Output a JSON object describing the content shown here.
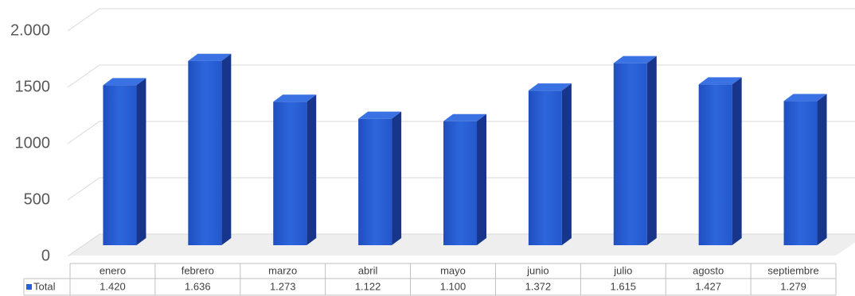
{
  "chart_data": {
    "type": "bar3d",
    "categories": [
      "enero",
      "febrero",
      "marzo",
      "abril",
      "mayo",
      "junio",
      "julio",
      "agosto",
      "septiembre"
    ],
    "series": [
      {
        "name": "Total",
        "color": "#2860d8",
        "values": [
          1420,
          1636,
          1273,
          1122,
          1100,
          1372,
          1615,
          1427,
          1279
        ],
        "value_labels": [
          "1.420",
          "1.636",
          "1.273",
          "1.122",
          "1.100",
          "1.372",
          "1.615",
          "1.427",
          "1.279"
        ]
      }
    ],
    "ylim": [
      0,
      2000
    ],
    "yticks": [
      0,
      500,
      1000,
      1500,
      {
        "value": 2000,
        "label": "2.000"
      }
    ],
    "grid": true
  }
}
